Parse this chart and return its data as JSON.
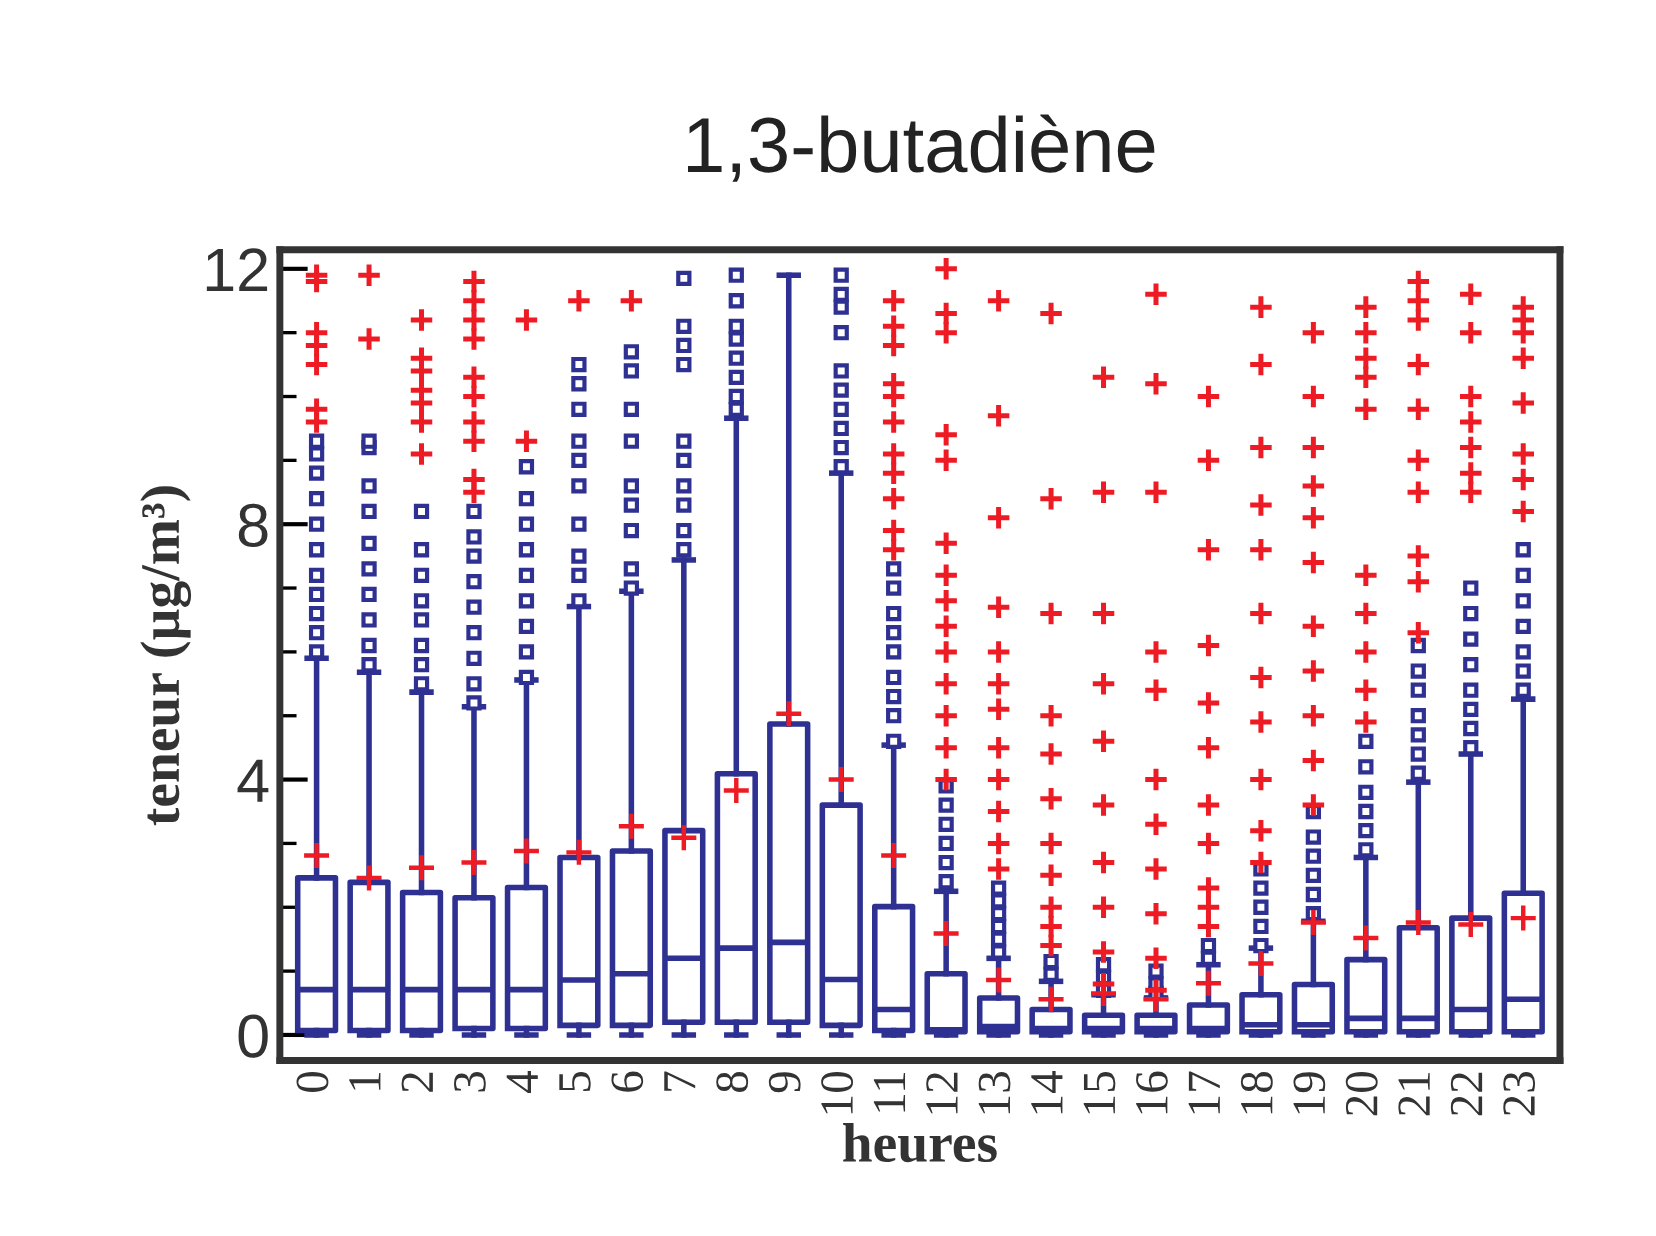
{
  "chart_data": {
    "type": "box",
    "title": "1,3-butadiène",
    "xlabel": "heures",
    "ylabel": "teneur (µg/m³)",
    "categories": [
      "0",
      "1",
      "2",
      "3",
      "4",
      "5",
      "6",
      "7",
      "8",
      "9",
      "10",
      "11",
      "12",
      "13",
      "14",
      "15",
      "16",
      "17",
      "18",
      "19",
      "20",
      "21",
      "22",
      "23"
    ],
    "ylim": [
      -0.4,
      12.3
    ],
    "yticks": [
      0,
      4,
      8,
      12
    ],
    "grid": false,
    "series": [
      {
        "color": "#2e3192",
        "boxes": [
          {
            "low": 0,
            "q1": 0.07,
            "median": 0.71,
            "q3": 2.46,
            "high": 5.9,
            "mean": 2.81,
            "outliers": [
              6.0,
              6.3,
              6.6,
              6.9,
              7.2,
              7.6,
              8.0,
              8.4,
              8.8,
              9.1,
              9.3
            ]
          },
          {
            "low": 0,
            "q1": 0.07,
            "median": 0.71,
            "q3": 2.39,
            "high": 5.68,
            "mean": 2.46,
            "outliers": [
              5.8,
              6.1,
              6.5,
              6.9,
              7.3,
              7.7,
              8.2,
              8.6,
              9.2,
              9.3
            ]
          },
          {
            "low": 0,
            "q1": 0.07,
            "median": 0.71,
            "q3": 2.23,
            "high": 5.37,
            "mean": 2.62,
            "outliers": [
              5.5,
              5.8,
              6.1,
              6.5,
              6.8,
              7.2,
              7.6,
              8.2
            ]
          },
          {
            "low": 0,
            "q1": 0.1,
            "median": 0.71,
            "q3": 2.15,
            "high": 5.14,
            "mean": 2.7,
            "outliers": [
              5.2,
              5.5,
              5.9,
              6.3,
              6.7,
              7.1,
              7.5,
              7.8,
              8.2
            ]
          },
          {
            "low": 0,
            "q1": 0.1,
            "median": 0.71,
            "q3": 2.31,
            "high": 5.56,
            "mean": 2.88,
            "outliers": [
              5.6,
              6.0,
              6.4,
              6.8,
              7.2,
              7.6,
              8.0,
              8.4,
              8.9
            ]
          },
          {
            "low": 0,
            "q1": 0.15,
            "median": 0.86,
            "q3": 2.78,
            "high": 6.71,
            "mean": 2.86,
            "outliers": [
              6.8,
              7.2,
              7.5,
              8.0,
              8.6,
              9.0,
              9.3,
              9.8,
              10.2,
              10.5
            ]
          },
          {
            "low": 0,
            "q1": 0.15,
            "median": 0.96,
            "q3": 2.88,
            "high": 6.95,
            "mean": 3.27,
            "outliers": [
              7.0,
              7.3,
              7.9,
              8.3,
              8.6,
              9.3,
              9.8,
              10.4,
              10.7
            ]
          },
          {
            "low": 0,
            "q1": 0.2,
            "median": 1.2,
            "q3": 3.2,
            "high": 7.44,
            "mean": 3.09,
            "outliers": [
              7.6,
              7.9,
              8.3,
              8.6,
              9.0,
              9.3,
              10.5,
              10.8,
              11.1,
              11.85
            ]
          },
          {
            "low": 0,
            "q1": 0.2,
            "median": 1.36,
            "q3": 4.09,
            "high": 9.66,
            "mean": 3.83,
            "outliers": [
              9.8,
              10.0,
              10.3,
              10.6,
              10.9,
              11.1,
              11.5,
              11.9
            ]
          },
          {
            "low": 0,
            "q1": 0.2,
            "median": 1.45,
            "q3": 4.87,
            "high": 11.9,
            "mean": 5.03
          },
          {
            "low": 0,
            "q1": 0.15,
            "median": 0.87,
            "q3": 3.6,
            "high": 8.8,
            "mean": 4.0,
            "outliers": [
              8.9,
              9.2,
              9.5,
              9.8,
              10.1,
              10.4,
              11.0,
              11.4,
              11.6,
              11.9
            ]
          },
          {
            "low": 0,
            "q1": 0.07,
            "median": 0.4,
            "q3": 2.01,
            "high": 4.54,
            "mean": 2.81,
            "outliers": [
              4.6,
              5.0,
              5.3,
              5.6,
              6.0,
              6.3,
              6.6,
              7.0,
              7.3
            ]
          },
          {
            "low": 0,
            "q1": 0.05,
            "median": 0.08,
            "q3": 0.96,
            "high": 2.25,
            "mean": 1.59,
            "outliers": [
              2.4,
              2.7,
              3.0,
              3.3,
              3.6,
              3.9
            ]
          },
          {
            "low": 0,
            "q1": 0.05,
            "median": 0.13,
            "q3": 0.58,
            "high": 1.2,
            "mean": 0.86,
            "outliers": [
              1.3,
              1.5,
              1.7,
              1.9,
              2.1,
              2.3
            ]
          },
          {
            "low": 0,
            "q1": 0.05,
            "median": 0.1,
            "q3": 0.4,
            "high": 0.84,
            "mean": 0.56,
            "outliers": [
              0.95,
              1.15
            ]
          },
          {
            "low": 0,
            "q1": 0.05,
            "median": 0.1,
            "q3": 0.31,
            "high": 0.63,
            "mean": 0.65,
            "outliers": [
              0.7,
              0.9,
              1.1
            ]
          },
          {
            "low": 0,
            "q1": 0.05,
            "median": 0.1,
            "q3": 0.31,
            "high": 0.58,
            "mean": 0.56,
            "outliers": [
              0.65,
              0.8,
              1.0
            ]
          },
          {
            "low": 0,
            "q1": 0.05,
            "median": 0.1,
            "q3": 0.47,
            "high": 1.1,
            "mean": 0.81,
            "outliers": [
              1.2,
              1.4
            ]
          },
          {
            "low": 0,
            "q1": 0.05,
            "median": 0.16,
            "q3": 0.63,
            "high": 1.36,
            "mean": 1.12,
            "outliers": [
              1.4,
              1.7,
              2.0,
              2.3,
              2.6
            ]
          },
          {
            "low": 0,
            "q1": 0.05,
            "median": 0.16,
            "q3": 0.79,
            "high": 1.78,
            "mean": 1.76,
            "outliers": [
              1.9,
              2.2,
              2.5,
              2.8,
              3.1,
              3.5
            ]
          },
          {
            "low": 0,
            "q1": 0.05,
            "median": 0.26,
            "q3": 1.18,
            "high": 2.78,
            "mean": 1.52,
            "outliers": [
              2.9,
              3.2,
              3.5,
              3.8,
              4.2,
              4.6
            ]
          },
          {
            "low": 0,
            "q1": 0.05,
            "median": 0.26,
            "q3": 1.68,
            "high": 3.96,
            "mean": 1.76,
            "outliers": [
              4.1,
              4.4,
              4.7,
              5.0,
              5.4,
              5.7,
              6.1
            ]
          },
          {
            "low": 0,
            "q1": 0.05,
            "median": 0.4,
            "q3": 1.83,
            "high": 4.4,
            "mean": 1.73,
            "outliers": [
              4.5,
              4.8,
              5.1,
              5.4,
              5.8,
              6.2,
              6.6,
              7.0
            ]
          },
          {
            "low": 0,
            "q1": 0.05,
            "median": 0.56,
            "q3": 2.22,
            "high": 5.26,
            "mean": 1.83,
            "outliers": [
              5.4,
              5.7,
              6.0,
              6.4,
              6.8,
              7.2,
              7.6
            ]
          }
        ]
      },
      {
        "type": "scatter",
        "color": "#ed1c24",
        "marker": "cross",
        "x": [
          "0",
          "0",
          "0",
          "0",
          "0",
          "0",
          "0",
          "1",
          "1",
          "2",
          "2",
          "2",
          "2",
          "2",
          "2",
          "2",
          "3",
          "3",
          "3",
          "3",
          "3",
          "3",
          "3",
          "3",
          "3",
          "3",
          "4",
          "4",
          "5",
          "6",
          "11",
          "11",
          "11",
          "11",
          "11",
          "11",
          "11",
          "11",
          "11",
          "11",
          "11",
          "12",
          "12",
          "12",
          "12",
          "12",
          "12",
          "12",
          "12",
          "12",
          "12",
          "12",
          "12",
          "12",
          "12",
          "13",
          "13",
          "13",
          "13",
          "13",
          "13",
          "13",
          "13",
          "13",
          "13",
          "13",
          "13",
          "14",
          "14",
          "14",
          "14",
          "14",
          "14",
          "14",
          "14",
          "14",
          "14",
          "14",
          "15",
          "15",
          "15",
          "15",
          "15",
          "15",
          "15",
          "15",
          "15",
          "15",
          "16",
          "16",
          "16",
          "16",
          "16",
          "16",
          "16",
          "16",
          "16",
          "16",
          "16",
          "17",
          "17",
          "17",
          "17",
          "17",
          "17",
          "17",
          "17",
          "17",
          "17",
          "17",
          "18",
          "18",
          "18",
          "18",
          "18",
          "18",
          "18",
          "18",
          "18",
          "18",
          "18",
          "19",
          "19",
          "19",
          "19",
          "19",
          "19",
          "19",
          "19",
          "19",
          "19",
          "19",
          "20",
          "20",
          "20",
          "20",
          "20",
          "20",
          "20",
          "20",
          "20",
          "20",
          "21",
          "21",
          "21",
          "21",
          "21",
          "21",
          "21",
          "21",
          "21",
          "21",
          "22",
          "22",
          "22",
          "22",
          "22",
          "22",
          "22",
          "23",
          "23",
          "23",
          "23",
          "23",
          "23",
          "23",
          "23"
        ],
        "values": [
          9.6,
          9.8,
          10.5,
          10.8,
          11.0,
          11.8,
          11.9,
          10.9,
          11.9,
          9.1,
          9.6,
          9.9,
          10.1,
          10.4,
          10.6,
          11.2,
          8.5,
          8.7,
          9.3,
          9.6,
          10.0,
          10.3,
          10.9,
          11.2,
          11.5,
          11.8,
          9.3,
          11.2,
          11.5,
          11.5,
          7.6,
          7.9,
          8.4,
          8.8,
          9.1,
          9.6,
          10.0,
          10.2,
          10.8,
          11.1,
          11.5,
          4.0,
          4.5,
          5.0,
          5.5,
          6.0,
          6.4,
          6.8,
          7.2,
          7.7,
          9.0,
          9.4,
          11.0,
          11.3,
          12.0,
          2.6,
          3.0,
          3.5,
          4.0,
          4.5,
          5.1,
          5.5,
          6.0,
          6.7,
          8.1,
          9.7,
          11.5,
          1.4,
          1.7,
          2.0,
          2.5,
          3.0,
          3.7,
          4.4,
          5.0,
          6.6,
          8.4,
          11.3,
          0.8,
          1.3,
          2.0,
          2.7,
          3.6,
          4.6,
          5.5,
          6.6,
          8.5,
          10.3,
          0.7,
          1.2,
          1.9,
          2.6,
          3.3,
          4.0,
          5.4,
          6.0,
          8.5,
          10.2,
          11.6,
          1.7,
          2.0,
          2.3,
          3.0,
          3.6,
          4.5,
          5.2,
          6.1,
          7.6,
          9.0,
          10.0,
          2.7,
          3.2,
          4.0,
          4.9,
          5.6,
          6.6,
          7.6,
          8.3,
          9.2,
          10.5,
          11.4,
          3.6,
          4.3,
          5.0,
          5.7,
          6.4,
          7.4,
          8.1,
          8.6,
          9.2,
          10.0,
          11.0,
          4.9,
          5.4,
          6.0,
          6.6,
          7.2,
          9.8,
          10.3,
          10.6,
          11.0,
          11.4,
          6.3,
          7.1,
          7.5,
          8.5,
          9.0,
          9.8,
          10.5,
          11.2,
          11.5,
          11.8,
          8.5,
          8.8,
          9.2,
          9.6,
          10.0,
          11.0,
          11.6,
          8.2,
          8.7,
          9.1,
          9.9,
          10.6,
          11.0,
          11.2,
          11.4
        ]
      }
    ]
  }
}
